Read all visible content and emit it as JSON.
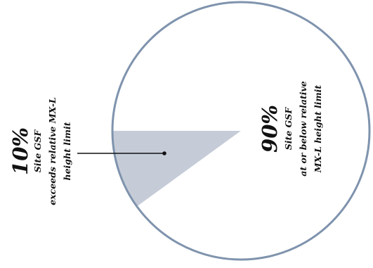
{
  "chart_data": {
    "type": "pie",
    "title": "",
    "slices": [
      {
        "value": 10,
        "percent_label": "10%",
        "lines": [
          "Site GSF",
          "exceeds relative  MX-L",
          "height limit"
        ],
        "color": "#c5ccd8"
      },
      {
        "value": 90,
        "percent_label": "90%",
        "lines": [
          "Site GSF",
          "at or below relative",
          "MX-L height limit"
        ],
        "color": "#ffffff"
      }
    ],
    "outline_color": "#7f93ad",
    "leader_color": "#111111"
  }
}
